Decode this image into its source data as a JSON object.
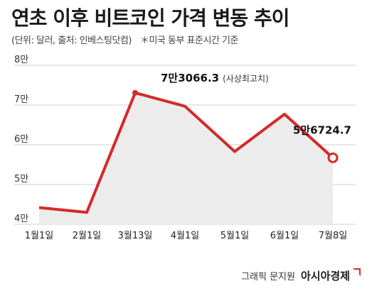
{
  "title": "연초 이후 비트코인 가격 변동 추이",
  "subtitle": {
    "units": "(단위: 달러, 출처: 인베스팅닷컴)",
    "note": "＊미국 동부 표준시간 기준"
  },
  "credit": {
    "author": "그래픽 문지원",
    "publisher": "아시아경제"
  },
  "colors": {
    "line": "#d42a2a",
    "area": "#ececec",
    "grid": "#cfcfcf"
  },
  "chart_data": {
    "type": "area",
    "x": [
      "1월1일",
      "2월1일",
      "3월13일",
      "4월1일",
      "5월1일",
      "6월1일",
      "7월8일"
    ],
    "values": [
      44200,
      43000,
      73066.3,
      69700,
      58300,
      67700,
      56724.7
    ],
    "ylim": [
      40000,
      80000
    ],
    "yticks": [
      {
        "value": 40000,
        "label": "4만"
      },
      {
        "value": 50000,
        "label": "5만"
      },
      {
        "value": 60000,
        "label": "6만"
      },
      {
        "value": 70000,
        "label": "7만"
      },
      {
        "value": 80000,
        "label": "8만"
      }
    ],
    "annotations": [
      {
        "index": 2,
        "label": "7만3066.3",
        "note": "(사상최고치)"
      },
      {
        "index": 6,
        "label": "5만6724.7",
        "note": ""
      }
    ],
    "grid": true,
    "end_marker": true
  }
}
